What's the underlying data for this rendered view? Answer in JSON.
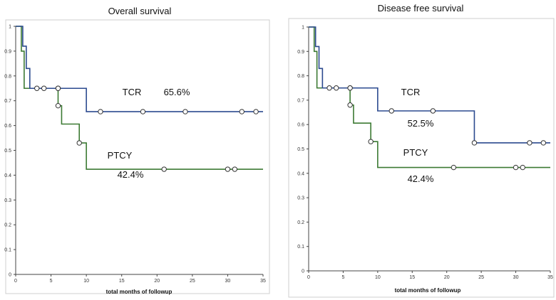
{
  "chart_data": [
    {
      "type": "line",
      "subtype": "step",
      "title": "Overall survival",
      "xlabel": "total months of followup",
      "ylabel": "",
      "xlim": [
        0,
        35
      ],
      "ylim": [
        0,
        1
      ],
      "xticks": [
        "0",
        "5",
        "10",
        "15",
        "20",
        "25",
        "30",
        "35"
      ],
      "yticks": [
        "0",
        "0.1",
        "0.2",
        "0.3",
        "0.4",
        "0.5",
        "0.6",
        "0.7",
        "0.8",
        "0.9",
        "1"
      ],
      "series": [
        {
          "name": "TCR",
          "label_text": "TCR",
          "final_value_label": "65.6%",
          "color": "#2b4a8f",
          "steps": [
            [
              0,
              1
            ],
            [
              1,
              0.92
            ],
            [
              1.5,
              0.83
            ],
            [
              2,
              0.75
            ],
            [
              10,
              0.656
            ],
            [
              35,
              0.656
            ]
          ],
          "censored": [
            [
              3,
              0.75
            ],
            [
              4,
              0.75
            ],
            [
              6,
              0.75
            ],
            [
              12,
              0.656
            ],
            [
              18,
              0.656
            ],
            [
              24,
              0.656
            ],
            [
              32,
              0.656
            ],
            [
              34,
              0.656
            ]
          ]
        },
        {
          "name": "PTCY",
          "label_text": "PTCY",
          "final_value_label": "42.4%",
          "color": "#3c7a33",
          "steps": [
            [
              0,
              1
            ],
            [
              0.8,
              0.9
            ],
            [
              1.2,
              0.75
            ],
            [
              6,
              0.68
            ],
            [
              6.5,
              0.606
            ],
            [
              9,
              0.53
            ],
            [
              10,
              0.424
            ],
            [
              35,
              0.424
            ]
          ],
          "censored": [
            [
              6,
              0.75
            ],
            [
              6,
              0.68
            ],
            [
              9,
              0.53
            ],
            [
              21,
              0.424
            ],
            [
              30,
              0.424
            ],
            [
              31,
              0.424
            ]
          ]
        }
      ]
    },
    {
      "type": "line",
      "subtype": "step",
      "title": "Disease free survival",
      "xlabel": "total months of followup",
      "ylabel": "",
      "xlim": [
        0,
        35
      ],
      "ylim": [
        0,
        1
      ],
      "xticks": [
        "0",
        "5",
        "10",
        "15",
        "20",
        "25",
        "30",
        "35"
      ],
      "yticks": [
        "0",
        "0.1",
        "0.2",
        "0.3",
        "0.4",
        "0.5",
        "0.6",
        "0.7",
        "0.8",
        "0.9",
        "1"
      ],
      "series": [
        {
          "name": "TCR",
          "label_text": "TCR",
          "final_value_label": "52.5%",
          "color": "#2b4a8f",
          "steps": [
            [
              0,
              1
            ],
            [
              1,
              0.92
            ],
            [
              1.5,
              0.83
            ],
            [
              2,
              0.75
            ],
            [
              10,
              0.656
            ],
            [
              24,
              0.525
            ],
            [
              35,
              0.525
            ]
          ],
          "censored": [
            [
              3,
              0.75
            ],
            [
              4,
              0.75
            ],
            [
              6,
              0.75
            ],
            [
              12,
              0.656
            ],
            [
              18,
              0.656
            ],
            [
              24,
              0.525
            ],
            [
              32,
              0.525
            ],
            [
              34,
              0.525
            ]
          ]
        },
        {
          "name": "PTCY",
          "label_text": "PTCY",
          "final_value_label": "42.4%",
          "color": "#3c7a33",
          "steps": [
            [
              0,
              1
            ],
            [
              0.8,
              0.9
            ],
            [
              1.2,
              0.75
            ],
            [
              6,
              0.68
            ],
            [
              6.5,
              0.606
            ],
            [
              9,
              0.53
            ],
            [
              10,
              0.424
            ],
            [
              35,
              0.424
            ]
          ],
          "censored": [
            [
              6,
              0.75
            ],
            [
              6,
              0.68
            ],
            [
              9,
              0.53
            ],
            [
              21,
              0.424
            ],
            [
              30,
              0.424
            ],
            [
              31,
              0.424
            ]
          ]
        }
      ]
    }
  ]
}
